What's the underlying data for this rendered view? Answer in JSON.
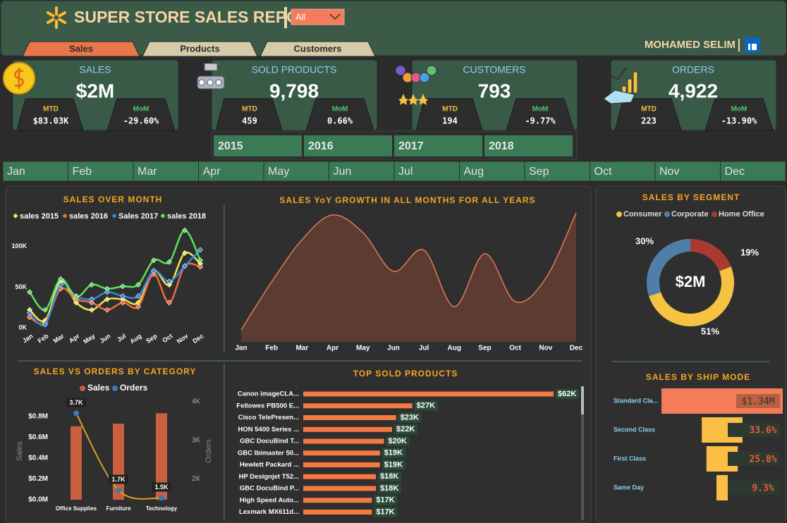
{
  "header": {
    "title": "SUPER STORE SALES REPORT",
    "filter": "All",
    "author": "MOHAMED SELIM"
  },
  "tabs": [
    "Sales",
    "Products",
    "Customers"
  ],
  "kpis": [
    {
      "title": "SALES",
      "value": "$2M",
      "mtd_label": "MTD",
      "mtd": "$83.03K",
      "mom_label": "MoM",
      "mom": "-29.60%"
    },
    {
      "title": "SOLD PRODUCTS",
      "value": "9,798",
      "mtd_label": "MTD",
      "mtd": "459",
      "mom_label": "MoM",
      "mom": "0.66%"
    },
    {
      "title": "CUSTOMERS",
      "value": "793",
      "mtd_label": "MTD",
      "mtd": "194",
      "mom_label": "MoM",
      "mom": "-9.77%"
    },
    {
      "title": "ORDERS",
      "value": "4,922",
      "mtd_label": "MTD",
      "mtd": "223",
      "mom_label": "MoM",
      "mom": "-13.90%"
    }
  ],
  "years": [
    "2015",
    "2016",
    "2017",
    "2018"
  ],
  "months": [
    "Jan",
    "Feb",
    "Mar",
    "Apr",
    "May",
    "Jun",
    "Jul",
    "Aug",
    "Sep",
    "Oct",
    "Nov",
    "Dec"
  ],
  "chart_data": [
    {
      "type": "line",
      "title": "SALES OVER MONTH",
      "categories": [
        "Jan",
        "Feb",
        "Mar",
        "Apr",
        "May",
        "Jun",
        "Jul",
        "Aug",
        "Sep",
        "Oct",
        "Nov",
        "Dec"
      ],
      "series": [
        {
          "name": "sales 2015",
          "color": "#f2e64a",
          "values": [
            22000,
            9000,
            57000,
            31000,
            22000,
            35000,
            35000,
            31000,
            70000,
            53000,
            92000,
            79000
          ]
        },
        {
          "name": "sales 2016",
          "color": "#f26b3a",
          "values": [
            13000,
            6000,
            48000,
            35000,
            31000,
            22000,
            31000,
            26000,
            66000,
            31000,
            76000,
            75000
          ]
        },
        {
          "name": "Sales 2017",
          "color": "#2e86de",
          "values": [
            18000,
            4000,
            53000,
            39000,
            35000,
            44000,
            39000,
            39000,
            70000,
            57000,
            76000,
            96000
          ]
        },
        {
          "name": "sales 2018",
          "color": "#5be35b",
          "values": [
            44000,
            22000,
            60000,
            38000,
            53000,
            48000,
            51000,
            53000,
            83000,
            81000,
            120000,
            83000
          ]
        }
      ],
      "ylim": [
        0,
        125000
      ],
      "yticks": [
        {
          "value": 0,
          "label": "0K"
        },
        {
          "value": 50000,
          "label": "50K"
        },
        {
          "value": 100000,
          "label": "100K"
        }
      ]
    },
    {
      "type": "area",
      "title": "SALES YoY GROWTH IN ALL MONTHS FOR ALL YEARS",
      "categories": [
        "Jan",
        "Feb",
        "Mar",
        "Apr",
        "May",
        "Jun",
        "Jul",
        "Aug",
        "Sep",
        "Oct",
        "Nov",
        "Dec"
      ],
      "values": [
        17,
        85,
        145,
        180,
        155,
        100,
        130,
        50,
        125,
        57,
        90,
        183
      ],
      "ylim": [
        0,
        190
      ],
      "color": "#e07a5a",
      "fill": "#5c3b33"
    },
    {
      "type": "bar_line",
      "title": "SALES VS ORDERS BY CATEGORY",
      "categories": [
        "Office Supplies",
        "Furniture",
        "Technology"
      ],
      "series": [
        {
          "name": "Sales",
          "color": "#c8603f",
          "values": [
            705000,
            730000,
            830000
          ]
        },
        {
          "name": "Orders",
          "color": "#3a7ab8",
          "line_color": "#d9a021",
          "axis": "y2",
          "values": [
            3700,
            1700,
            1500
          ],
          "value_labels": [
            "3.7K",
            "1.7K",
            "1.5K"
          ]
        }
      ],
      "ylabel": "Sales",
      "y2label": "Orders",
      "ylim": [
        0,
        940000
      ],
      "yticks": [
        {
          "value": 0,
          "label": "$0.0M"
        },
        {
          "value": 200000,
          "label": "$0.2M"
        },
        {
          "value": 400000,
          "label": "$0.4M"
        },
        {
          "value": 600000,
          "label": "$0.6M"
        },
        {
          "value": 800000,
          "label": "$0.8M"
        }
      ],
      "y2lim": [
        1455,
        4000
      ],
      "y2ticks": [
        {
          "value": 2000,
          "label": "2K"
        },
        {
          "value": 3000,
          "label": "3K"
        },
        {
          "value": 4000,
          "label": "4K"
        }
      ]
    },
    {
      "type": "hbar",
      "title": "TOP SOLD PRODUCTS",
      "categories": [
        "Canon imageCLA...",
        "Fellowes PB500 E...",
        "Cisco TelePresen...",
        "HON 5400 Series ...",
        "GBC DocuBind T...",
        "GBC Ibimaster 50...",
        "Hewlett Packard ...",
        "HP Designjet T52...",
        "GBC DocuBind P...",
        "High Speed Auto...",
        "Lexmark MX611d..."
      ],
      "values": [
        62000,
        27000,
        23000,
        22000,
        20000,
        19000,
        19000,
        18000,
        18000,
        17000,
        17000
      ],
      "value_labels": [
        "$62K",
        "$27K",
        "$23K",
        "$22K",
        "$20K",
        "$19K",
        "$19K",
        "$18K",
        "$18K",
        "$17K",
        "$17K"
      ],
      "xlim": [
        0,
        62000
      ],
      "color": "#f47a42"
    },
    {
      "type": "donut",
      "title": "SALES BY SEGMENT",
      "center_label": "$2M",
      "categories": [
        "Consumer",
        "Corporate",
        "Home Office"
      ],
      "values": [
        51,
        30,
        19
      ],
      "value_labels": [
        "51%",
        "30%",
        "19%"
      ],
      "colors": [
        "#f5c242",
        "#4f7fa8",
        "#a83a32"
      ]
    },
    {
      "type": "funnel",
      "title": "SALES BY SHIP MODE",
      "categories": [
        "Standard Cla...",
        "Second Class",
        "First Class",
        "Same Day"
      ],
      "values": [
        100,
        33.6,
        25.8,
        9.3
      ],
      "value_labels": [
        null,
        "33.6%",
        "25.8%",
        "9.3%"
      ],
      "first_value": {
        "value": 1340000,
        "label": "$1.34M"
      },
      "colors": [
        "#f47c5a",
        "#fcbf45",
        "#fcbf45",
        "#fcbf45"
      ]
    }
  ]
}
